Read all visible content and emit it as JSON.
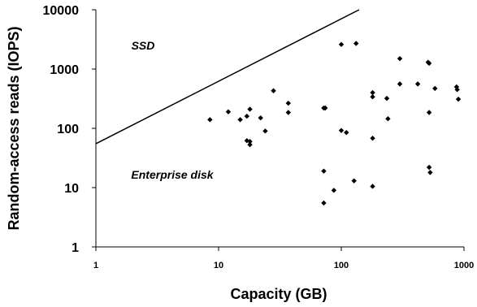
{
  "chart_data": {
    "type": "scatter",
    "title": "",
    "xlabel": "Capacity (GB)",
    "ylabel": "Random-access reads (IOPS)",
    "x_scale": "log",
    "y_scale": "log",
    "xlim": [
      1,
      1000
    ],
    "ylim": [
      1,
      10000
    ],
    "x_ticks": [
      "1",
      "10",
      "100",
      "1000"
    ],
    "y_ticks": [
      "1",
      "10",
      "100",
      "1000",
      "10000"
    ],
    "grid": false,
    "legend": "none",
    "annotations": [
      {
        "text": "SSD",
        "x": 3.0,
        "y": 2000
      },
      {
        "text": "Enterprise disk",
        "x": 2.5,
        "y": 12
      }
    ],
    "series": [
      {
        "type": "line",
        "points": [
          [
            1,
            55
          ],
          [
            139.7,
            10000
          ]
        ]
      },
      {
        "type": "scatter",
        "points": [
          [
            8.5,
            140
          ],
          [
            12,
            190
          ],
          [
            15,
            140
          ],
          [
            17,
            160
          ],
          [
            18,
            210
          ],
          [
            17,
            62
          ],
          [
            18,
            60
          ],
          [
            18,
            53
          ],
          [
            22,
            150
          ],
          [
            24,
            90
          ],
          [
            28,
            430
          ],
          [
            37,
            265
          ],
          [
            37,
            185
          ],
          [
            72,
            220
          ],
          [
            74,
            220
          ],
          [
            72,
            19
          ],
          [
            72,
            5.5
          ],
          [
            87,
            9
          ],
          [
            100,
            2600
          ],
          [
            100,
            92
          ],
          [
            110,
            85
          ],
          [
            127,
            13
          ],
          [
            132,
            2700
          ],
          [
            180,
            400
          ],
          [
            180,
            340
          ],
          [
            180,
            68
          ],
          [
            180,
            10.5
          ],
          [
            235,
            320
          ],
          [
            240,
            145
          ],
          [
            300,
            560
          ],
          [
            300,
            1500
          ],
          [
            420,
            560
          ],
          [
            510,
            1300
          ],
          [
            520,
            1250
          ],
          [
            520,
            185
          ],
          [
            520,
            22
          ],
          [
            530,
            18
          ],
          [
            580,
            470
          ],
          [
            870,
            500
          ],
          [
            880,
            450
          ],
          [
            900,
            310
          ]
        ]
      }
    ],
    "colors": {
      "marks": "#000000"
    }
  }
}
